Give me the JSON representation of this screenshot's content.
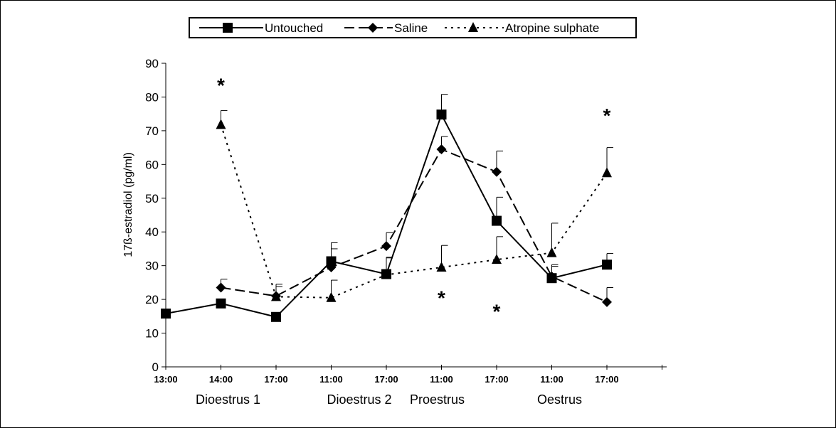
{
  "chart_data": {
    "type": "line",
    "title": "",
    "ylabel": "17ß-estradiol  (pg/ml)",
    "xlabel": "",
    "ylim": [
      0,
      90
    ],
    "yticks": [
      "0",
      "10",
      "20",
      "30",
      "40",
      "50",
      "60",
      "70",
      "80",
      "90"
    ],
    "x_tick_labels": [
      "13:00",
      "14:00",
      "17:00",
      "11:00",
      "17:00",
      "11:00",
      "17:00",
      "11:00",
      "17:00"
    ],
    "groups": [
      "Dioestrus 1",
      "Dioestrus 2",
      "Proestrus",
      "Oestrus"
    ],
    "legend_position": "top-center",
    "series": [
      {
        "name": "Untouched",
        "marker": "square",
        "dash": "solid",
        "values": [
          15.8,
          18.8,
          14.8,
          31.3,
          27.5,
          74.8,
          43.3,
          26.3,
          30.3
        ],
        "errors": [
          null,
          null,
          null,
          5.5,
          5.0,
          6.0,
          7.0,
          3.5,
          3.3
        ]
      },
      {
        "name": "Saline",
        "marker": "diamond",
        "dash": "dashed",
        "values": [
          null,
          23.5,
          21.0,
          29.5,
          35.8,
          64.5,
          57.8,
          26.8,
          19.2
        ],
        "errors": [
          null,
          2.5,
          3.5,
          5.5,
          4.0,
          3.8,
          6.2,
          3.5,
          4.3
        ]
      },
      {
        "name": "Atropine sulphate",
        "marker": "triangle",
        "dash": "dotted",
        "values": [
          null,
          71.8,
          20.8,
          20.5,
          27.3,
          29.5,
          31.8,
          33.8,
          57.5
        ],
        "errors": [
          null,
          4.2,
          3.0,
          5.2,
          5.0,
          6.5,
          6.8,
          8.8,
          7.5
        ]
      }
    ],
    "annotations": [
      {
        "text": "*",
        "x_index": 1,
        "y": 84
      },
      {
        "text": "*",
        "x_index": 8,
        "y": 75
      },
      {
        "text": "*",
        "x_index": 5,
        "y": 21
      },
      {
        "text": "*",
        "x_index": 6,
        "y": 17
      }
    ],
    "colors": {
      "line": "#000000",
      "background": "#ffffff"
    }
  }
}
